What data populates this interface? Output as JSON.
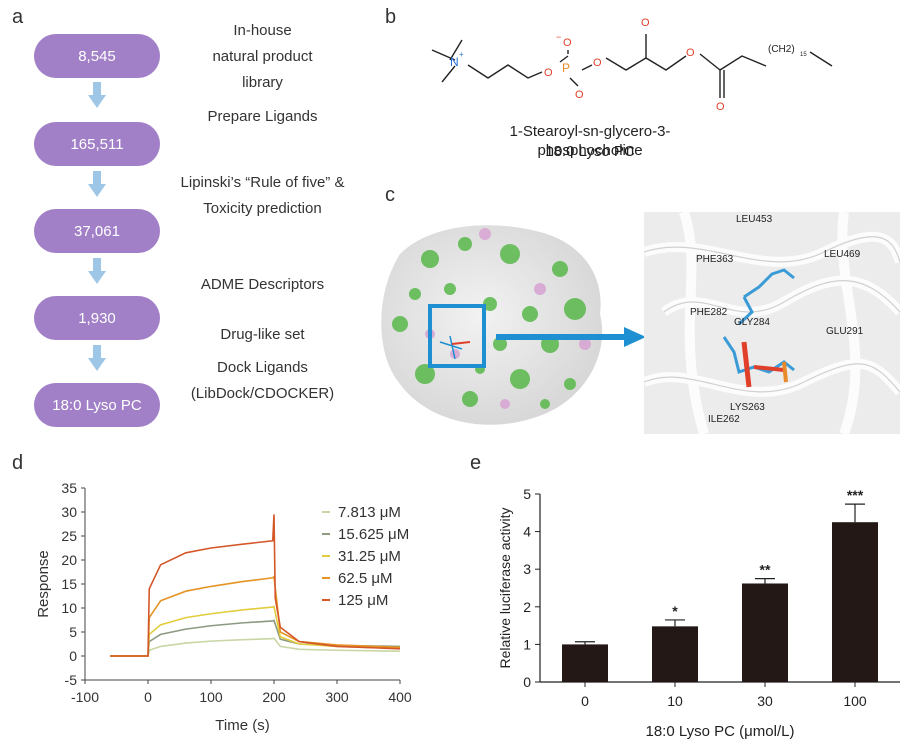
{
  "panel_labels": {
    "a": "a",
    "b": "b",
    "c": "c",
    "d": "d",
    "e": "e"
  },
  "panel_a": {
    "steps": [
      "8,545",
      "165,511",
      "37,061",
      "1,930",
      "18:0 Lyso PC"
    ],
    "labels": {
      "library": [
        "In-house",
        "natural product",
        "library"
      ],
      "prepare": "Prepare Ligands",
      "lipinski": [
        "Lipinski’s “Rule of five” &",
        "Toxicity prediction"
      ],
      "adme": "ADME Descriptors",
      "druglike": "Drug-like set",
      "dock": [
        "Dock Ligands",
        "(LibDock/CDOCKER)"
      ]
    },
    "colors": {
      "pill": "#a280c7",
      "arrow": "#9ec6e6"
    }
  },
  "panel_b": {
    "atoms": {
      "n_plus": "N",
      "charge": "+",
      "o_minus": "O",
      "minus": "−",
      "p": "P",
      "o": "O",
      "chain": "(CH2)",
      "chain_sub": "15"
    },
    "name": "1-Stearoyl-sn-glycero-3-phosphocholine",
    "short_name": "18:0 Lyso PC",
    "colors": {
      "oxygen": "#e0402a",
      "phosphorus": "#e8892a",
      "nitrogen": "#2a6fd6"
    }
  },
  "panel_c": {
    "residues": [
      "LEU453",
      "LEU469",
      "PHE363",
      "PHE282",
      "GLY284",
      "GLU291",
      "LYS263",
      "ILE262"
    ],
    "colors": {
      "highlight": "#1e8fd1",
      "surface_green": "#58b84a",
      "surface_pink": "#d7a6d3"
    }
  },
  "panel_d": {
    "chart_data": {
      "type": "line",
      "xlabel": "Time (s)",
      "ylabel": "Response",
      "xlim": [
        -100,
        400
      ],
      "ylim": [
        -5,
        35
      ],
      "x_ticks": [
        -100,
        0,
        100,
        200,
        300,
        400
      ],
      "y_ticks": [
        -5,
        0,
        5,
        10,
        15,
        20,
        25,
        30,
        35
      ],
      "legend_position": "right",
      "series": [
        {
          "name": "7.813 μM",
          "color": "#c9d6a5",
          "x": [
            -60,
            0,
            2,
            20,
            60,
            100,
            150,
            198,
            200,
            210,
            240,
            300,
            400
          ],
          "y": [
            0,
            0,
            1.2,
            2.0,
            2.7,
            3.1,
            3.4,
            3.6,
            3.7,
            2.0,
            1.4,
            1.2,
            1.0
          ]
        },
        {
          "name": "15.625 μM",
          "color": "#8c9a82",
          "x": [
            -60,
            0,
            2,
            20,
            60,
            100,
            150,
            198,
            200,
            210,
            240,
            300,
            400
          ],
          "y": [
            0,
            0,
            3.0,
            4.5,
            5.6,
            6.3,
            6.9,
            7.3,
            7.4,
            3.5,
            2.5,
            2.2,
            2.0
          ]
        },
        {
          "name": "31.25 μM",
          "color": "#e2cd3c",
          "x": [
            -60,
            0,
            2,
            20,
            60,
            100,
            150,
            198,
            200,
            210,
            240,
            300,
            400
          ],
          "y": [
            0,
            0,
            4.5,
            6.5,
            8.0,
            8.8,
            9.6,
            10.2,
            10.3,
            4.0,
            2.5,
            2.0,
            1.6
          ]
        },
        {
          "name": "62.5 μM",
          "color": "#e59424",
          "x": [
            -60,
            0,
            2,
            20,
            60,
            100,
            150,
            198,
            200,
            210,
            240,
            300,
            400
          ],
          "y": [
            0,
            0,
            8.0,
            11.5,
            13.5,
            14.5,
            15.5,
            16.3,
            16.5,
            5.0,
            3.0,
            2.3,
            1.8
          ]
        },
        {
          "name": "125 μM",
          "color": "#d4572a",
          "x": [
            -60,
            0,
            2,
            20,
            60,
            100,
            150,
            198,
            200,
            202,
            210,
            240,
            300,
            400
          ],
          "y": [
            0,
            0,
            14.0,
            19.0,
            21.5,
            22.5,
            23.3,
            24.0,
            29.5,
            12.0,
            6.0,
            3.0,
            2.0,
            1.5
          ]
        }
      ]
    }
  },
  "panel_e": {
    "chart_data": {
      "type": "bar",
      "categories": [
        "0",
        "10",
        "30",
        "100"
      ],
      "values": [
        1.0,
        1.48,
        2.62,
        4.25
      ],
      "errors": [
        0.07,
        0.17,
        0.13,
        0.48
      ],
      "significance": [
        "",
        "*",
        "**",
        "***"
      ],
      "xlabel": "18:0 Lyso PC (μmol/L)",
      "ylabel": "Relative luciferase activity",
      "ylim": [
        0,
        5
      ],
      "y_ticks": [
        0,
        1,
        2,
        3,
        4,
        5
      ],
      "bar_color": "#231815"
    }
  }
}
